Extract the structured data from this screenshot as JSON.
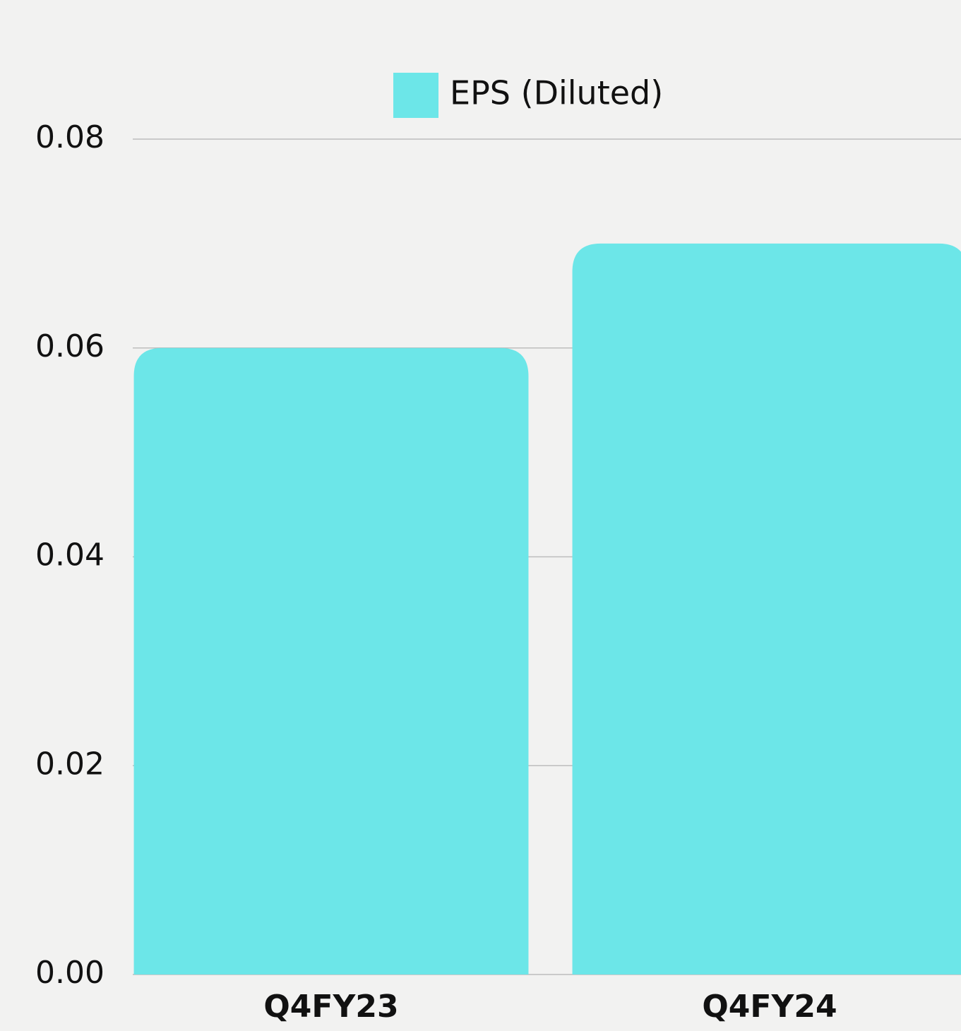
{
  "chart_data": {
    "type": "bar",
    "categories": [
      "Q4FY23",
      "Q4FY24"
    ],
    "series": [
      {
        "name": "EPS (Diluted)",
        "color": "#6ce6e8",
        "values": [
          0.06,
          0.07
        ]
      }
    ],
    "ylim": [
      0,
      0.08
    ],
    "yticks": [
      {
        "value": 0,
        "label": "0.00"
      },
      0.02,
      0.04,
      0.06,
      0.08
    ],
    "grid": true,
    "legend": "top"
  }
}
